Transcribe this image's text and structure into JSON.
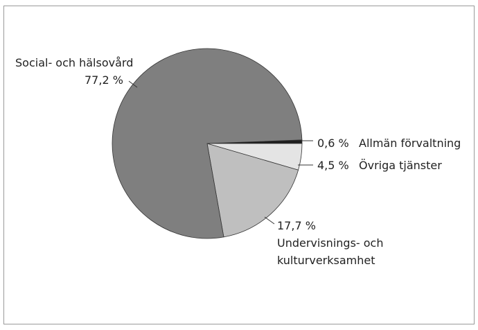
{
  "chart_data": {
    "type": "pie",
    "categories": [
      "Allmän förvaltning",
      "Övriga tjänster",
      "Undervisnings- och kulturverksamhet",
      "Social- och hälsovård"
    ],
    "values": [
      0.6,
      4.5,
      17.7,
      77.2
    ],
    "value_labels": [
      "0,6 %",
      "4,5 %",
      "17,7 %",
      "77,2 %"
    ],
    "colors": [
      "#1e1e1e",
      "#e4e4e4",
      "#bfbfbf",
      "#7f7f7f"
    ]
  }
}
